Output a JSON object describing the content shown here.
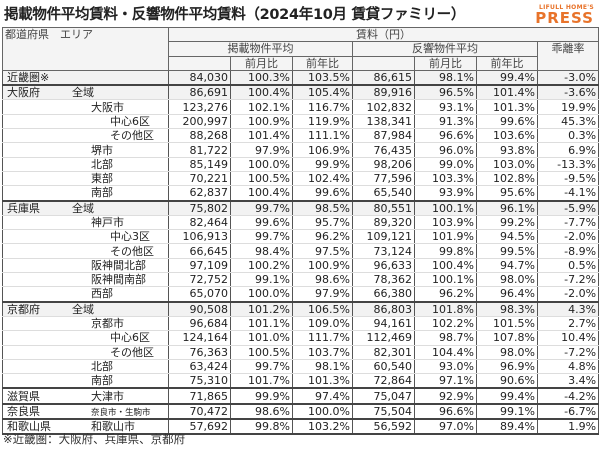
{
  "title": "掲載物件平均賃料・反響物件平均賃料（2024年10月 賃貸ファミリー）",
  "logo": {
    "line1": "LIFULL HOME'S",
    "line2": "PRESS"
  },
  "header": {
    "area": "都道府県　エリア",
    "rent": "賃料（円）",
    "listed": "掲載物件平均",
    "response": "反響物件平均",
    "gap": "乖離率",
    "mom": "前月比",
    "yoy": "前年比"
  },
  "rows": [
    {
      "pref": "近畿圏※",
      "area": "",
      "level": 0,
      "v1": "84,030",
      "m1": "100.3%",
      "y1": "103.5%",
      "v2": "86,615",
      "m2": "98.1%",
      "y2": "99.4%",
      "gap": "-3.0%"
    },
    {
      "pref": "大阪府",
      "area": "全域",
      "level": 0,
      "v1": "86,691",
      "m1": "100.4%",
      "y1": "105.4%",
      "v2": "89,916",
      "m2": "96.5%",
      "y2": "101.4%",
      "gap": "-3.6%"
    },
    {
      "pref": "",
      "area": "大阪市",
      "level": 1,
      "v1": "123,276",
      "m1": "102.1%",
      "y1": "116.7%",
      "v2": "102,832",
      "m2": "93.1%",
      "y2": "101.3%",
      "gap": "19.9%"
    },
    {
      "pref": "",
      "area": "中心6区",
      "level": 2,
      "v1": "200,997",
      "m1": "100.9%",
      "y1": "119.9%",
      "v2": "138,341",
      "m2": "91.3%",
      "y2": "99.6%",
      "gap": "45.3%"
    },
    {
      "pref": "",
      "area": "その他区",
      "level": 2,
      "v1": "88,268",
      "m1": "101.4%",
      "y1": "111.1%",
      "v2": "87,984",
      "m2": "96.6%",
      "y2": "103.6%",
      "gap": "0.3%"
    },
    {
      "pref": "",
      "area": "堺市",
      "level": 1,
      "v1": "81,722",
      "m1": "97.9%",
      "y1": "106.9%",
      "v2": "76,435",
      "m2": "96.0%",
      "y2": "93.8%",
      "gap": "6.9%"
    },
    {
      "pref": "",
      "area": "北部",
      "level": 1,
      "v1": "85,149",
      "m1": "100.0%",
      "y1": "99.9%",
      "v2": "98,206",
      "m2": "99.0%",
      "y2": "103.0%",
      "gap": "-13.3%"
    },
    {
      "pref": "",
      "area": "東部",
      "level": 1,
      "v1": "70,221",
      "m1": "100.5%",
      "y1": "102.4%",
      "v2": "77,596",
      "m2": "103.3%",
      "y2": "102.8%",
      "gap": "-9.5%"
    },
    {
      "pref": "",
      "area": "南部",
      "level": 1,
      "v1": "62,837",
      "m1": "100.4%",
      "y1": "99.6%",
      "v2": "65,540",
      "m2": "93.9%",
      "y2": "95.6%",
      "gap": "-4.1%"
    },
    {
      "pref": "兵庫県",
      "area": "全域",
      "level": 0,
      "v1": "75,802",
      "m1": "99.7%",
      "y1": "98.5%",
      "v2": "80,551",
      "m2": "100.1%",
      "y2": "96.1%",
      "gap": "-5.9%"
    },
    {
      "pref": "",
      "area": "神戸市",
      "level": 1,
      "v1": "82,464",
      "m1": "99.6%",
      "y1": "95.7%",
      "v2": "89,320",
      "m2": "103.9%",
      "y2": "99.2%",
      "gap": "-7.7%"
    },
    {
      "pref": "",
      "area": "中心3区",
      "level": 2,
      "v1": "106,913",
      "m1": "99.7%",
      "y1": "96.2%",
      "v2": "109,121",
      "m2": "101.9%",
      "y2": "94.5%",
      "gap": "-2.0%"
    },
    {
      "pref": "",
      "area": "その他区",
      "level": 2,
      "v1": "66,645",
      "m1": "98.4%",
      "y1": "97.5%",
      "v2": "73,124",
      "m2": "99.8%",
      "y2": "99.5%",
      "gap": "-8.9%"
    },
    {
      "pref": "",
      "area": "阪神間北部",
      "level": 1,
      "v1": "97,109",
      "m1": "100.2%",
      "y1": "100.9%",
      "v2": "96,633",
      "m2": "100.4%",
      "y2": "94.7%",
      "gap": "0.5%"
    },
    {
      "pref": "",
      "area": "阪神間南部",
      "level": 1,
      "v1": "72,752",
      "m1": "99.1%",
      "y1": "98.6%",
      "v2": "78,362",
      "m2": "100.1%",
      "y2": "98.0%",
      "gap": "-7.2%"
    },
    {
      "pref": "",
      "area": "西部",
      "level": 1,
      "v1": "65,070",
      "m1": "100.0%",
      "y1": "97.9%",
      "v2": "66,380",
      "m2": "96.2%",
      "y2": "96.4%",
      "gap": "-2.0%"
    },
    {
      "pref": "京都府",
      "area": "全域",
      "level": 0,
      "v1": "90,508",
      "m1": "101.2%",
      "y1": "106.5%",
      "v2": "86,803",
      "m2": "101.8%",
      "y2": "98.3%",
      "gap": "4.3%"
    },
    {
      "pref": "",
      "area": "京都市",
      "level": 1,
      "v1": "96,684",
      "m1": "101.1%",
      "y1": "109.0%",
      "v2": "94,161",
      "m2": "102.2%",
      "y2": "101.5%",
      "gap": "2.7%"
    },
    {
      "pref": "",
      "area": "中心6区",
      "level": 2,
      "v1": "124,164",
      "m1": "101.0%",
      "y1": "111.7%",
      "v2": "112,469",
      "m2": "98.7%",
      "y2": "107.8%",
      "gap": "10.4%"
    },
    {
      "pref": "",
      "area": "その他区",
      "level": 2,
      "v1": "76,363",
      "m1": "100.5%",
      "y1": "103.7%",
      "v2": "82,301",
      "m2": "104.4%",
      "y2": "98.0%",
      "gap": "-7.2%"
    },
    {
      "pref": "",
      "area": "北部",
      "level": 1,
      "v1": "63,424",
      "m1": "99.7%",
      "y1": "98.1%",
      "v2": "60,540",
      "m2": "93.0%",
      "y2": "96.9%",
      "gap": "4.8%"
    },
    {
      "pref": "",
      "area": "南部",
      "level": 1,
      "v1": "75,310",
      "m1": "101.7%",
      "y1": "101.3%",
      "v2": "72,864",
      "m2": "97.1%",
      "y2": "90.6%",
      "gap": "3.4%"
    },
    {
      "pref": "滋賀県",
      "area": "大津市",
      "level": 1,
      "v1": "71,865",
      "m1": "99.9%",
      "y1": "97.4%",
      "v2": "75,047",
      "m2": "92.9%",
      "y2": "99.4%",
      "gap": "-4.2%"
    },
    {
      "pref": "奈良県",
      "area": "奈良市・生駒市",
      "level": 1,
      "small": true,
      "v1": "70,472",
      "m1": "98.6%",
      "y1": "100.0%",
      "v2": "75,504",
      "m2": "96.6%",
      "y2": "99.1%",
      "gap": "-6.7%"
    },
    {
      "pref": "和歌山県",
      "area": "和歌山市",
      "level": 1,
      "v1": "57,692",
      "m1": "99.8%",
      "y1": "103.2%",
      "v2": "56,592",
      "m2": "97.0%",
      "y2": "89.4%",
      "gap": "1.9%"
    }
  ],
  "note": "※近畿圏：大阪府、兵庫県、京都府"
}
